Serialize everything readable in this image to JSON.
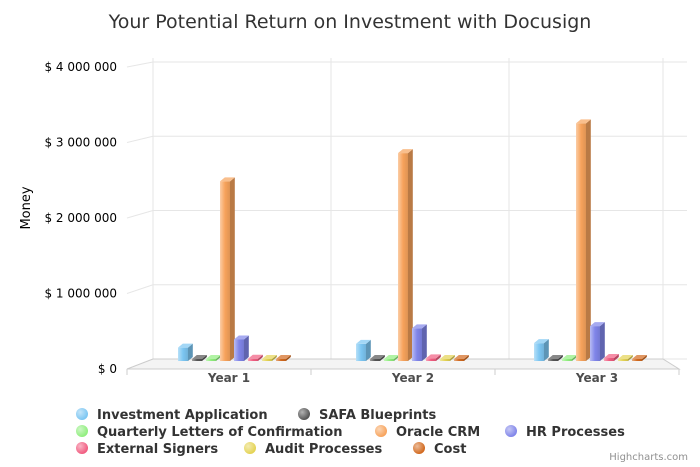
{
  "chart_data": {
    "type": "bar",
    "title": "Your Potential Return on Investment with Docusign",
    "xlabel": "",
    "ylabel": "Money",
    "categories": [
      "Year 1",
      "Year 2",
      "Year 3"
    ],
    "ylim": [
      0,
      4000000
    ],
    "yticks": [
      0,
      1000000,
      2000000,
      3000000,
      4000000
    ],
    "ytick_labels": [
      "$ 0",
      "$ 1 000 000",
      "$ 2 000 000",
      "$ 3 000 000",
      "$ 4 000 000"
    ],
    "grid": true,
    "legend_position": "bottom",
    "series": [
      {
        "name": "Investment Application",
        "color": "#7cc6f2",
        "values": [
          180000,
          230000,
          240000
        ]
      },
      {
        "name": "SAFA Blueprints",
        "color": "#555555",
        "values": [
          20000,
          25000,
          25000
        ]
      },
      {
        "name": "Quarterly Letters of Confirmation",
        "color": "#90ee7e",
        "values": [
          10000,
          12000,
          12000
        ]
      },
      {
        "name": "Oracle CRM",
        "color": "#f7a35c",
        "values": [
          2420000,
          2800000,
          3200000
        ]
      },
      {
        "name": "HR Processes",
        "color": "#8085e9",
        "values": [
          290000,
          440000,
          470000
        ]
      },
      {
        "name": "External Signers",
        "color": "#f15c80",
        "values": [
          30000,
          35000,
          40000
        ]
      },
      {
        "name": "Audit Processes",
        "color": "#e4d354",
        "values": [
          15000,
          15000,
          15000
        ]
      },
      {
        "name": "Cost",
        "color": "#d2691e",
        "values": [
          0,
          0,
          0
        ]
      }
    ],
    "credits": "Highcharts.com"
  }
}
